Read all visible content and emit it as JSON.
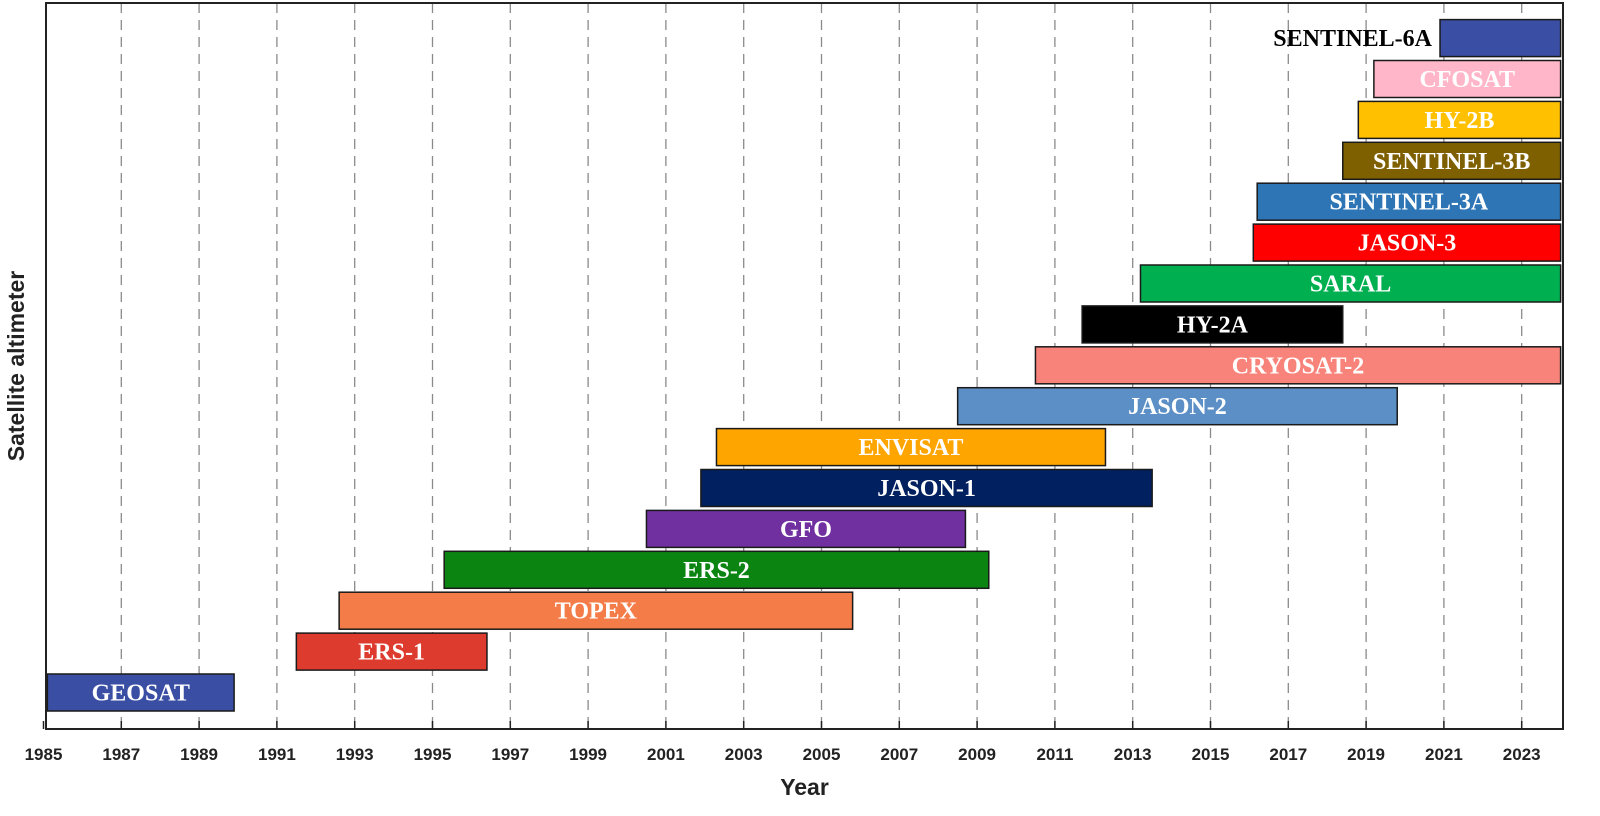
{
  "chart_data": {
    "type": "bar",
    "orientation": "horizontal",
    "subtype": "timeline",
    "title": "",
    "xlabel": "Year",
    "ylabel": "Satellite altimeter",
    "xlim": [
      1985.0,
      2024.0
    ],
    "xticks": [
      "1985",
      "1987",
      "1989",
      "1991",
      "1993",
      "1995",
      "1997",
      "1999",
      "2001",
      "2003",
      "2005",
      "2007",
      "2009",
      "2011",
      "2013",
      "2015",
      "2017",
      "2019",
      "2021",
      "2023"
    ],
    "grid": "vertical dashed",
    "series": [
      {
        "name": "GEOSAT",
        "start": 1985.1,
        "end": 1989.9,
        "color": "#3A4FA4",
        "label_color": "#ffffff"
      },
      {
        "name": "ERS-1",
        "start": 1991.5,
        "end": 1996.4,
        "color": "#DE3B2F",
        "label_color": "#ffffff"
      },
      {
        "name": "TOPEX",
        "start": 1992.6,
        "end": 2005.8,
        "color": "#F47C48",
        "label_color": "#ffffff"
      },
      {
        "name": "ERS-2",
        "start": 1995.3,
        "end": 2009.3,
        "color": "#0C8412",
        "label_color": "#ffffff"
      },
      {
        "name": "GFO",
        "start": 2000.5,
        "end": 2008.7,
        "color": "#7030A0",
        "label_color": "#ffffff"
      },
      {
        "name": "JASON-1",
        "start": 2001.9,
        "end": 2013.5,
        "color": "#002060",
        "label_color": "#ffffff"
      },
      {
        "name": "ENVISAT",
        "start": 2002.3,
        "end": 2012.3,
        "color": "#FFA500",
        "label_color": "#ffffff"
      },
      {
        "name": "JASON-2",
        "start": 2008.5,
        "end": 2019.8,
        "color": "#5B8FC6",
        "label_color": "#ffffff"
      },
      {
        "name": "CRYOSAT-2",
        "start": 2010.5,
        "end": 2024.0,
        "color": "#F8837A",
        "label_color": "#ffffff"
      },
      {
        "name": "HY-2A",
        "start": 2011.7,
        "end": 2018.4,
        "color": "#000000",
        "label_color": "#ffffff"
      },
      {
        "name": "SARAL",
        "start": 2013.2,
        "end": 2024.0,
        "color": "#00B050",
        "label_color": "#ffffff"
      },
      {
        "name": "JASON-3",
        "start": 2016.1,
        "end": 2024.0,
        "color": "#FF0000",
        "label_color": "#ffffff"
      },
      {
        "name": "SENTINEL-3A",
        "start": 2016.2,
        "end": 2024.0,
        "color": "#2E75B6",
        "label_color": "#ffffff"
      },
      {
        "name": "SENTINEL-3B",
        "start": 2018.4,
        "end": 2024.0,
        "color": "#7F6000",
        "label_color": "#ffffff"
      },
      {
        "name": "HY-2B",
        "start": 2018.8,
        "end": 2024.0,
        "color": "#FFC000",
        "label_color": "#ffffff"
      },
      {
        "name": "CFOSAT",
        "start": 2019.2,
        "end": 2024.0,
        "color": "#FFB6C8",
        "label_color": "#ffffff"
      },
      {
        "name": "SENTINEL-6A",
        "start": 2020.9,
        "end": 2024.0,
        "color": "#3A4FA4",
        "label_color": "#000000",
        "label_position": "left-outside"
      }
    ]
  }
}
